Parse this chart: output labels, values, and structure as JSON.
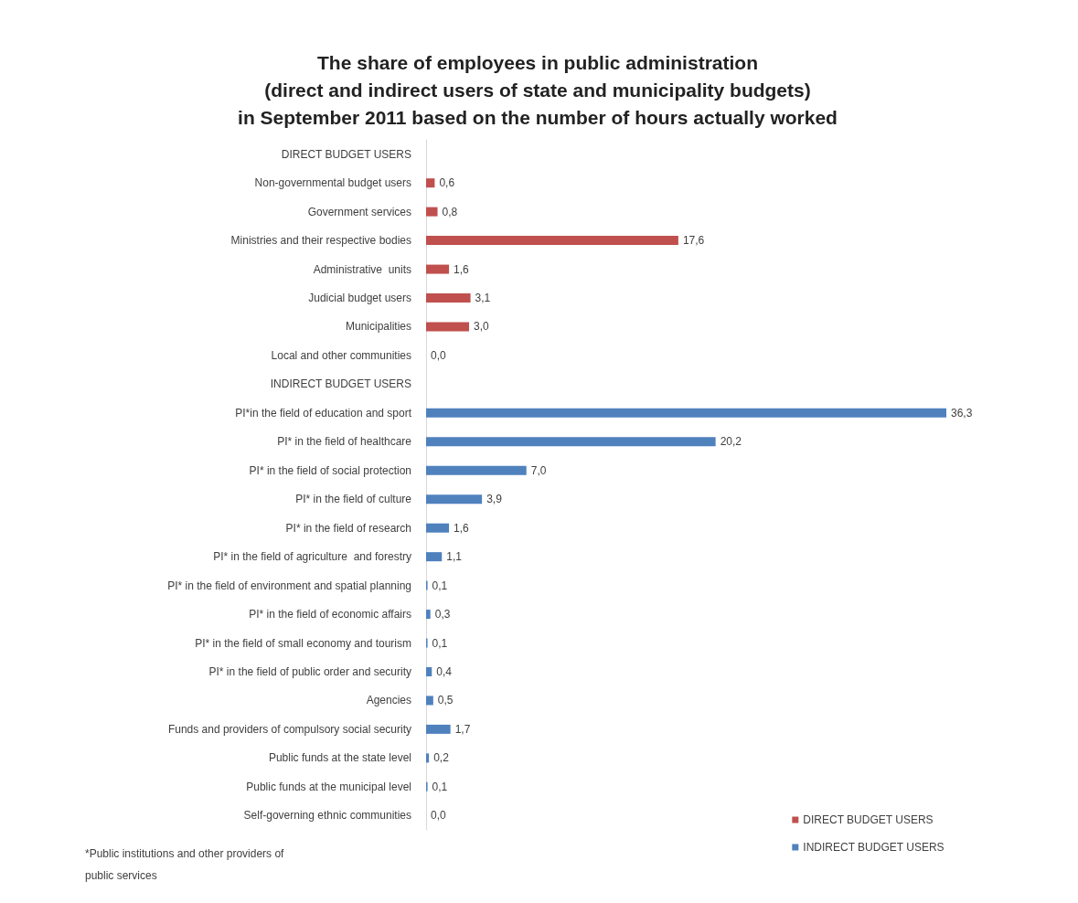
{
  "chart_data": {
    "type": "bar",
    "orientation": "horizontal",
    "title": "The share of employees in public administration\n(direct and indirect users of state and municipality budgets)\nin September 2011 based on the number of hours actually worked",
    "categories": [
      "DIRECT BUDGET USERS",
      "Non-governmental budget users",
      "Government services",
      "Ministries and their respective bodies",
      "Administrative  units",
      "Judicial budget users",
      "Municipalities",
      "Local and other communities",
      "INDIRECT BUDGET USERS",
      "PI*in the field of education and sport",
      "PI* in the field of healthcare",
      "PI* in the field of social protection",
      "PI* in the field of culture",
      "PI* in the field of research",
      "PI* in the field of agriculture  and forestry",
      "PI* in the field of environment and spatial planning",
      "PI* in the field of economic affairs",
      "PI* in the field of small economy and tourism",
      "PI* in the field of public order and security",
      "Agencies",
      "Funds and providers of compulsory social security",
      "Public funds at the state level",
      "Public funds at the municipal level",
      "Self-governing ethnic communities"
    ],
    "series": [
      {
        "name": "DIRECT BUDGET USERS",
        "color": "#c0504d",
        "values": [
          null,
          0.6,
          0.8,
          17.6,
          1.6,
          3.1,
          3.0,
          0.0,
          null,
          null,
          null,
          null,
          null,
          null,
          null,
          null,
          null,
          null,
          null,
          null,
          null,
          null,
          null,
          null
        ],
        "value_labels": [
          null,
          "0,6",
          "0,8",
          "17,6",
          "1,6",
          "3,1",
          "3,0",
          "0,0",
          null,
          null,
          null,
          null,
          null,
          null,
          null,
          null,
          null,
          null,
          null,
          null,
          null,
          null,
          null,
          null
        ]
      },
      {
        "name": "INDIRECT BUDGET USERS",
        "color": "#4f81bd",
        "values": [
          null,
          null,
          null,
          null,
          null,
          null,
          null,
          null,
          null,
          36.3,
          20.2,
          7.0,
          3.9,
          1.6,
          1.1,
          0.1,
          0.3,
          0.1,
          0.4,
          0.5,
          1.7,
          0.2,
          0.1,
          0.0
        ],
        "value_labels": [
          null,
          null,
          null,
          null,
          null,
          null,
          null,
          null,
          null,
          "36,3",
          "20,2",
          "7,0",
          "3,9",
          "1,6",
          "1,1",
          "0,1",
          "0,3",
          "0,1",
          "0,4",
          "0,5",
          "1,7",
          "0,2",
          "0,1",
          "0,0"
        ]
      }
    ],
    "legend": "bottom right",
    "grid": false,
    "annotations": [
      "*Public institutions and other providers of\npublic services"
    ]
  }
}
